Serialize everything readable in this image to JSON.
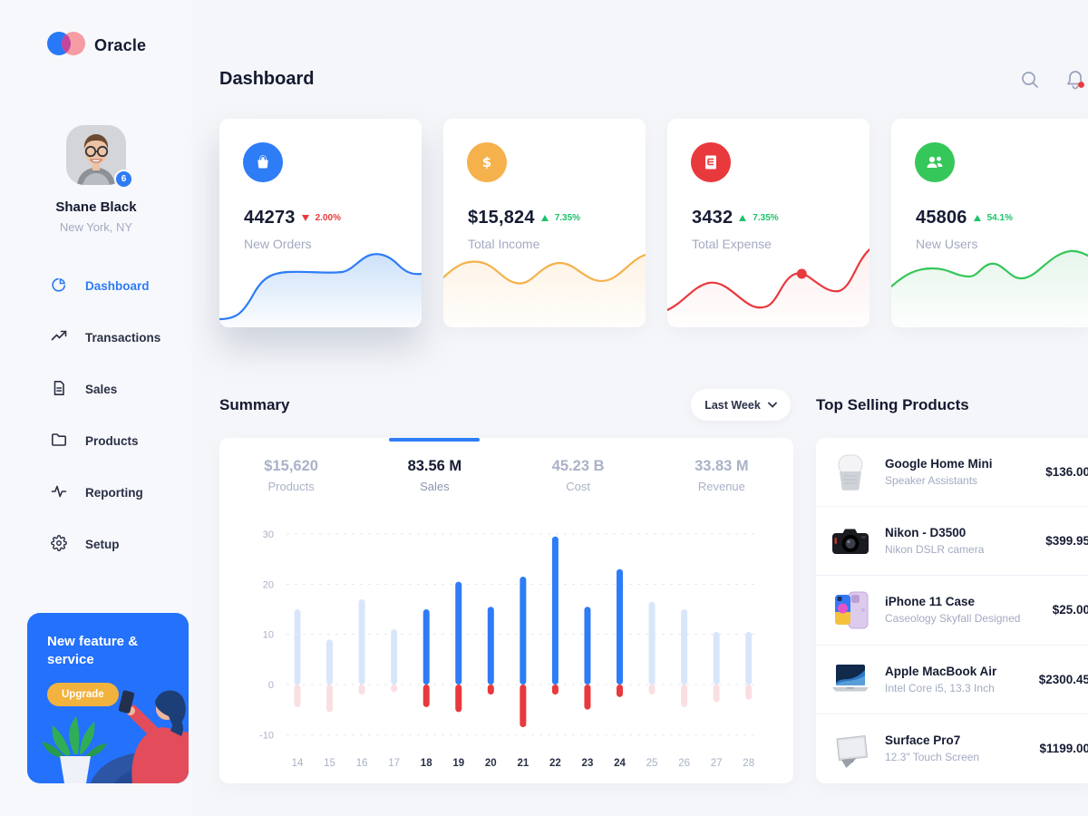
{
  "brand": {
    "name": "Oracle"
  },
  "header": {
    "title": "Dashboard"
  },
  "user": {
    "name": "Shane Black",
    "location": "New York, NY",
    "badge": "6"
  },
  "sidebar": {
    "items": [
      {
        "label": "Dashboard",
        "icon": "pie-chart",
        "active": true
      },
      {
        "label": "Transactions",
        "icon": "trending-up",
        "active": false
      },
      {
        "label": "Sales",
        "icon": "document",
        "active": false
      },
      {
        "label": "Products",
        "icon": "folder",
        "active": false
      },
      {
        "label": "Reporting",
        "icon": "activity",
        "active": false
      },
      {
        "label": "Setup",
        "icon": "gear",
        "active": false
      }
    ]
  },
  "promo": {
    "title": "New feature & service",
    "button": "Upgrade"
  },
  "stat_cards": [
    {
      "icon": "basket",
      "value": "44273",
      "delta": "2.00%",
      "direction": "down",
      "label": "New Orders",
      "color": "#2e7cf6",
      "spark": "blue",
      "elevated": true
    },
    {
      "icon": "dollar",
      "value": "$15,824",
      "delta": "7.35%",
      "direction": "up",
      "label": "Total Income",
      "color": "#f5b14c",
      "spark": "orange",
      "elevated": false
    },
    {
      "icon": "receipt",
      "value": "3432",
      "delta": "7.35%",
      "direction": "up",
      "label": "Total Expense",
      "color": "#e8393d",
      "spark": "red",
      "elevated": false
    },
    {
      "icon": "users",
      "value": "45806",
      "delta": "54.1%",
      "direction": "up",
      "label": "New Users",
      "color": "#35c75a",
      "spark": "green",
      "elevated": false
    }
  ],
  "summary": {
    "title": "Summary",
    "period": "Last Week",
    "tabs": [
      {
        "value": "$15,620",
        "label": "Products",
        "active": false
      },
      {
        "value": "83.56 M",
        "label": "Sales",
        "active": true
      },
      {
        "value": "45.23 B",
        "label": "Cost",
        "active": false
      },
      {
        "value": "33.83 M",
        "label": "Revenue",
        "active": false
      }
    ]
  },
  "chart_data": {
    "type": "bar",
    "stacked": true,
    "categories": [
      14,
      15,
      16,
      17,
      18,
      19,
      20,
      21,
      22,
      23,
      24,
      25,
      26,
      27,
      28
    ],
    "series": [
      {
        "name": "positive",
        "values": [
          15,
          9,
          17,
          11,
          15,
          20.5,
          15.5,
          21.5,
          29.5,
          15.5,
          23,
          16.5,
          15,
          10.5,
          10.5
        ]
      },
      {
        "name": "negative",
        "values": [
          -4.5,
          -5.5,
          -2,
          -1.5,
          -4.5,
          -5.5,
          -2,
          -8.5,
          -2,
          -5,
          -2.5,
          -2,
          -4.5,
          -3.5,
          -3
        ]
      }
    ],
    "highlight_categories": [
      18,
      19,
      20,
      21,
      22,
      23,
      24
    ],
    "ylim": [
      -10,
      30
    ],
    "yticks": [
      30,
      20,
      10,
      0,
      -10
    ],
    "grid": "dashed-horizontal",
    "legend": "none",
    "colors": {
      "positive": "#2e7cf6",
      "negative": "#e8393d",
      "positive_faded": "#d9e6fa",
      "negative_faded": "#fadfe2",
      "gridline": "#e4e7ee",
      "tick": "#a9b1c7",
      "tick_highlight": "#2a3146"
    }
  },
  "products": {
    "title": "Top Selling Products",
    "items": [
      {
        "image": "google-home",
        "name": "Google Home Mini",
        "subtitle": "Speaker Assistants",
        "price": "$136.00"
      },
      {
        "image": "nikon-camera",
        "name": "Nikon - D3500",
        "subtitle": "Nikon DSLR camera",
        "price": "$399.95"
      },
      {
        "image": "iphone-case",
        "name": "iPhone 11 Case",
        "subtitle": "Caseology Skyfall Designed",
        "price": "$25.00"
      },
      {
        "image": "macbook",
        "name": "Apple MacBook Air",
        "subtitle": "Intel Core i5, 13.3 Inch",
        "price": "$2300.45"
      },
      {
        "image": "surface",
        "name": "Surface Pro7",
        "subtitle": "12.3\" Touch Screen",
        "price": "$1199.00"
      }
    ]
  },
  "colors": {
    "accent_blue": "#2e7cf6",
    "up_green": "#1fc16b",
    "down_red": "#e8393d",
    "promo_blue": "#2471fb",
    "upgrade_yellow": "#f2b23e"
  }
}
